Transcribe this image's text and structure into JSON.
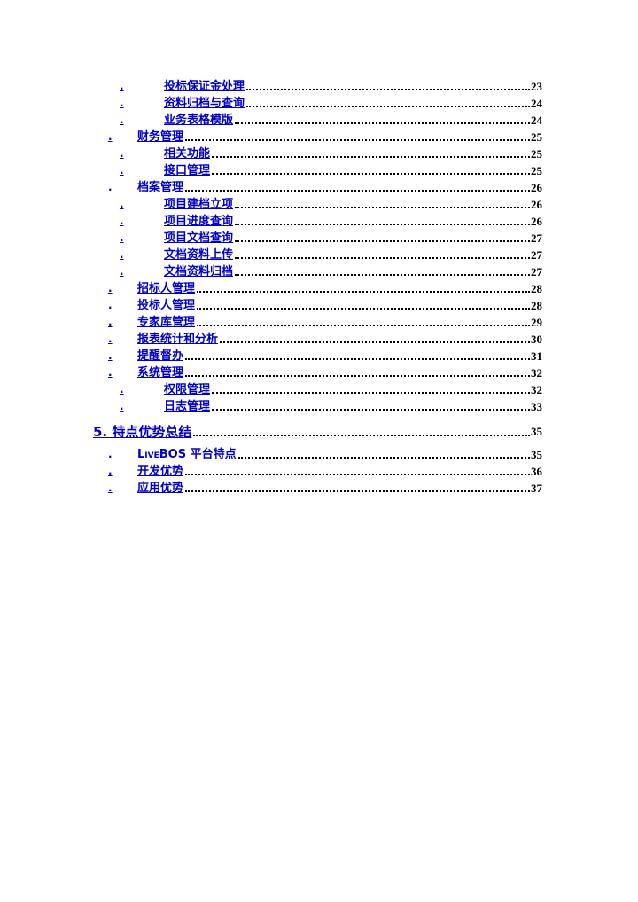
{
  "colors": {
    "link_blue": "#0000c8",
    "text_black": "#000000",
    "page_background": "#ffffff"
  },
  "toc": {
    "marker_char": ".",
    "entries": [
      {
        "level": 3,
        "label": "投标保证金处理",
        "page": "23"
      },
      {
        "level": 3,
        "label": "资料归档与查询",
        "page": "24"
      },
      {
        "level": 3,
        "label": "业务表格模版",
        "page": "24"
      },
      {
        "level": 2,
        "label": "财务管理",
        "page": "25"
      },
      {
        "level": 3,
        "label": "相关功能",
        "page": "25"
      },
      {
        "level": 3,
        "label": "接口管理",
        "page": "25"
      },
      {
        "level": 2,
        "label": "档案管理",
        "page": "26"
      },
      {
        "level": 3,
        "label": "项目建档立项",
        "page": "26"
      },
      {
        "level": 3,
        "label": "项目进度查询",
        "page": "26"
      },
      {
        "level": 3,
        "label": "项目文档查询",
        "page": "27"
      },
      {
        "level": 3,
        "label": "文档资料上传",
        "page": "27"
      },
      {
        "level": 3,
        "label": "文档资料归档",
        "page": "27"
      },
      {
        "level": 2,
        "label": "招标人管理",
        "page": "28"
      },
      {
        "level": 2,
        "label": "投标人管理",
        "page": "28"
      },
      {
        "level": 2,
        "label": "专家库管理",
        "page": "29"
      },
      {
        "level": 2,
        "label": "报表统计和分析",
        "page": "30"
      },
      {
        "level": 2,
        "label": "提醒督办",
        "page": "31"
      },
      {
        "level": 2,
        "label": "系统管理",
        "page": "32"
      },
      {
        "level": 3,
        "label": "权限管理",
        "page": "32"
      },
      {
        "level": 3,
        "label": "日志管理",
        "page": "33"
      },
      {
        "level": 1,
        "label": "5. 特点优势总结",
        "page": "35"
      },
      {
        "level": 2,
        "label": "LiveBOS 平台特点",
        "page": "35",
        "style": "smallcaps"
      },
      {
        "level": 2,
        "label": "开发优势",
        "page": "36"
      },
      {
        "level": 2,
        "label": "应用优势",
        "page": "37"
      }
    ]
  }
}
